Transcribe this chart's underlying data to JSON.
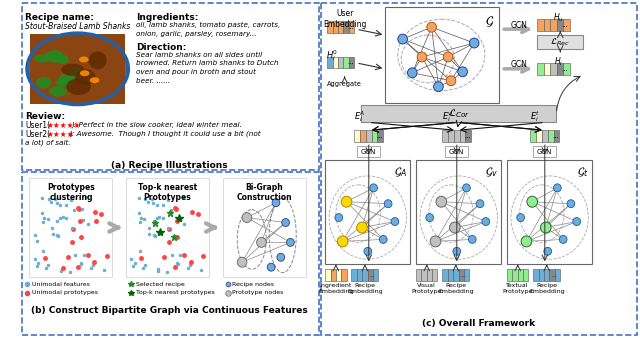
{
  "title_a": "(a) Recipe Illustrations",
  "title_b": "(b) Construct Bipartite Graph via Continuous Features",
  "title_c": "(c) Overall Framework",
  "recipe_name_label": "Recipe name:",
  "recipe_name_value": "Stout-Braised Lamb Shanks",
  "ingredients_label": "Ingredients:",
  "ingredients_value": "oil, lamb shanks, tomato paste, carrots,\nonion, garlic, parsley, rosemary...",
  "direction_label": "Direction:",
  "direction_value": "Sear lamb shanks on all sides until\nbrowned. Return lamb shanks to Dutch\noven and pour in broth and stout\nbeer. ......",
  "review_label": "Review:",
  "review_stars1": "★★★★★",
  "review_stars2": "★★★★",
  "proto_label1": "Prototypes\nclustering",
  "proto_label2": "Top-k nearest\nPrototypes",
  "proto_label3": "Bi-Graph\nConstruction",
  "legend_unimodal_feat": "Unimodal features",
  "legend_unimodal_proto": "Unimodal prototypes",
  "legend_selected": "Selected recipe",
  "legend_topk": "Top-k nearest prototypes",
  "legend_recipe_nodes": "Recipe nodes",
  "legend_proto_nodes": "Prototype nodes",
  "user_embedding": "User\nEmbedding",
  "aggregate": "Aggregate",
  "gcn": "GCN",
  "l_rec": "$\\mathcal{L}_{Rec}$",
  "l_cor": "$\\mathcal{L}_{Cor}$",
  "h_u": "$H_u$",
  "h_i": "$H_i$",
  "h_i0": "$H_i^0$",
  "g_label": "$\\mathcal{G}$",
  "g_a": "$\\mathcal{G}_A$",
  "g_v": "$\\mathcal{G}_v$",
  "g_t": "$\\mathcal{G}_t$",
  "e_a": "$E_i^A$",
  "e_v": "$E_i^v$",
  "e_t": "$E_i^t$",
  "ingredient_emb": "Ingredient\nEmbedding",
  "recipe_emb": "Recipe\nEmbedding",
  "visual_proto": "Visual\nPrototype",
  "textual_proto": "Textual\nPrototype",
  "bg_color": "#ffffff",
  "border_color": "#4472c4"
}
